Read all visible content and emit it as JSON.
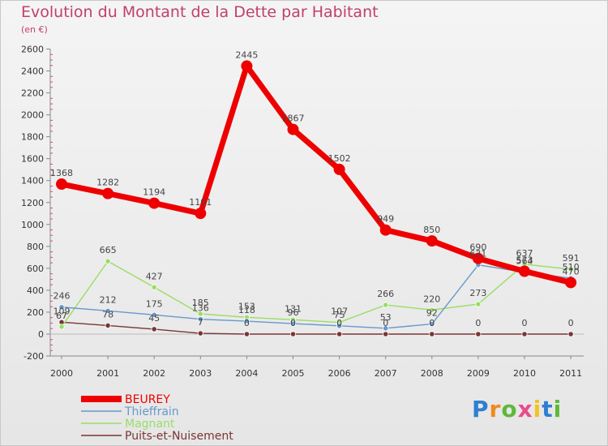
{
  "title": "Evolution du Montant de la Dette par Habitant",
  "unit": "(en €)",
  "logo_text": "Proxiti",
  "logo_colors": [
    "#2e7fd0",
    "#f08a1e",
    "#5fb83a",
    "#e84c8a",
    "#f2c21e",
    "#2e7fd0",
    "#5fb83a"
  ],
  "chart_data": {
    "type": "line",
    "x": [
      "2000",
      "2001",
      "2002",
      "2003",
      "2004",
      "2005",
      "2006",
      "2007",
      "2008",
      "2009",
      "2010",
      "2011"
    ],
    "ylim": [
      -200,
      2600
    ],
    "yticks": [
      -200,
      0,
      200,
      400,
      600,
      800,
      1000,
      1200,
      1400,
      1600,
      1800,
      2000,
      2200,
      2400,
      2600
    ],
    "grid": false,
    "legend_position": "bottom-left",
    "series": [
      {
        "name": "BEUREY",
        "color": "#ee0000",
        "values": [
          1368,
          1282,
          1194,
          1101,
          2445,
          1867,
          1502,
          949,
          850,
          690,
          573,
          470
        ]
      },
      {
        "name": "Thieffrain",
        "color": "#6699cc",
        "values": [
          246,
          212,
          175,
          136,
          118,
          96,
          75,
          53,
          92,
          631,
          564,
          510
        ]
      },
      {
        "name": "Magnant",
        "color": "#99dd66",
        "values": [
          67,
          665,
          427,
          185,
          153,
          131,
          107,
          266,
          220,
          273,
          637,
          591
        ]
      },
      {
        "name": "Puits-et-Nuisement",
        "color": "#7a3535",
        "values": [
          109,
          78,
          45,
          7,
          0,
          0,
          0,
          0,
          0,
          0,
          0,
          0
        ]
      }
    ]
  }
}
